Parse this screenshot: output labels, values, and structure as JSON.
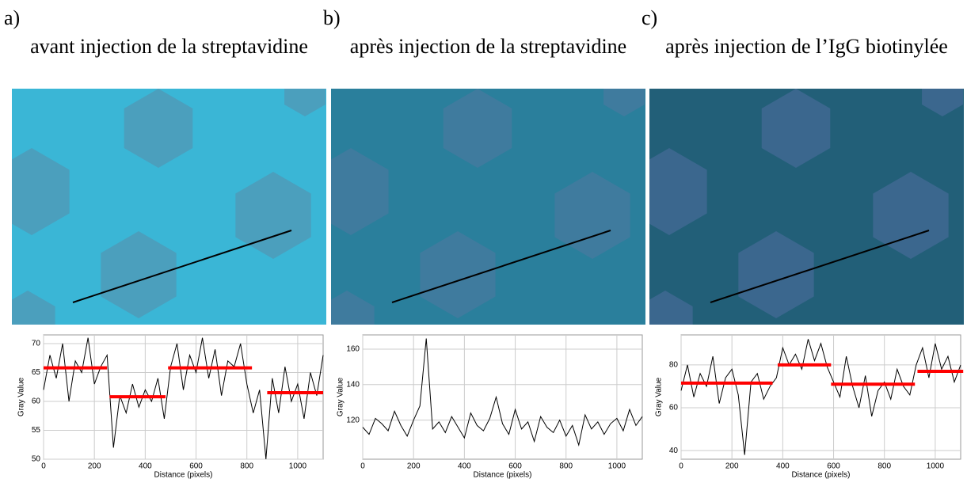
{
  "chart_data": [
    {
      "type": "line",
      "label": "a)",
      "title": "avant injection de la streptavidine",
      "xlabel": "Distance (pixels)",
      "ylabel": "Gray Value",
      "xlim": [
        0,
        1100
      ],
      "xticks": [
        0,
        200,
        400,
        600,
        800,
        1000
      ],
      "ylim": [
        50,
        71.5
      ],
      "yticks": [
        50,
        55,
        60,
        65,
        70
      ],
      "grid": true,
      "color": "#000000",
      "x": [
        0,
        25,
        50,
        75,
        100,
        125,
        150,
        175,
        200,
        225,
        250,
        275,
        300,
        325,
        350,
        375,
        400,
        425,
        450,
        475,
        500,
        525,
        550,
        575,
        600,
        625,
        650,
        675,
        700,
        725,
        750,
        775,
        800,
        825,
        850,
        875,
        900,
        925,
        950,
        975,
        1000,
        1025,
        1050,
        1075,
        1100
      ],
      "values": [
        62,
        68,
        64,
        70,
        60,
        67,
        65,
        71,
        63,
        66,
        68,
        52,
        61,
        58,
        63,
        59,
        62,
        60,
        64,
        57,
        66,
        70,
        62,
        68,
        65,
        71,
        64,
        69,
        61,
        67,
        66,
        70,
        63,
        58,
        62,
        50,
        64,
        58,
        66,
        60,
        63,
        57,
        65,
        61,
        68
      ],
      "levels_color": "#ff0000",
      "levels": [
        {
          "x": [
            0,
            250
          ],
          "value": 65.8
        },
        {
          "x": [
            260,
            480
          ],
          "value": 60.8
        },
        {
          "x": [
            490,
            820
          ],
          "value": 65.8
        },
        {
          "x": [
            880,
            1100
          ],
          "value": 61.5
        }
      ]
    },
    {
      "type": "line",
      "label": "b)",
      "title": "après injection de la streptavidine",
      "xlabel": "Distance (pixels)",
      "ylabel": "Gray Value",
      "xlim": [
        0,
        1100
      ],
      "xticks": [
        0,
        200,
        400,
        600,
        800,
        1000
      ],
      "ylim": [
        98,
        168
      ],
      "yticks": [
        120,
        140,
        160
      ],
      "grid": true,
      "color": "#000000",
      "x": [
        0,
        25,
        50,
        75,
        100,
        125,
        150,
        175,
        200,
        225,
        250,
        275,
        300,
        325,
        350,
        375,
        400,
        425,
        450,
        475,
        500,
        525,
        550,
        575,
        600,
        625,
        650,
        675,
        700,
        725,
        750,
        775,
        800,
        825,
        850,
        875,
        900,
        925,
        950,
        975,
        1000,
        1025,
        1050,
        1075,
        1100
      ],
      "values": [
        116,
        112,
        121,
        118,
        114,
        125,
        117,
        111,
        120,
        128,
        166,
        115,
        119,
        113,
        122,
        116,
        110,
        124,
        117,
        114,
        121,
        133,
        118,
        112,
        126,
        115,
        119,
        108,
        122,
        116,
        113,
        120,
        111,
        117,
        106,
        123,
        115,
        119,
        112,
        118,
        121,
        114,
        126,
        117,
        122
      ]
    },
    {
      "type": "line",
      "label": "c)",
      "title": "après injection de l’IgG biotinylée",
      "xlabel": "Distance (pixels)",
      "ylabel": "Gray Value",
      "xlim": [
        0,
        1100
      ],
      "xticks": [
        0,
        200,
        400,
        600,
        800,
        1000
      ],
      "ylim": [
        36,
        94
      ],
      "yticks": [
        40,
        60,
        80
      ],
      "grid": true,
      "color": "#000000",
      "x": [
        0,
        25,
        50,
        75,
        100,
        125,
        150,
        175,
        200,
        225,
        250,
        275,
        300,
        325,
        350,
        375,
        400,
        425,
        450,
        475,
        500,
        525,
        550,
        575,
        600,
        625,
        650,
        675,
        700,
        725,
        750,
        775,
        800,
        825,
        850,
        875,
        900,
        925,
        950,
        975,
        1000,
        1025,
        1050,
        1075,
        1100
      ],
      "values": [
        68,
        80,
        65,
        76,
        70,
        84,
        62,
        74,
        78,
        66,
        38,
        72,
        76,
        64,
        70,
        74,
        88,
        80,
        85,
        78,
        92,
        82,
        90,
        79,
        72,
        65,
        84,
        70,
        60,
        75,
        56,
        68,
        72,
        64,
        78,
        70,
        66,
        80,
        88,
        74,
        90,
        78,
        84,
        72,
        80
      ],
      "levels_color": "#ff0000",
      "levels": [
        {
          "x": [
            0,
            360
          ],
          "value": 71.5
        },
        {
          "x": [
            380,
            590
          ],
          "value": 80
        },
        {
          "x": [
            590,
            920
          ],
          "value": 71
        },
        {
          "x": [
            930,
            1110
          ],
          "value": 77
        }
      ]
    }
  ]
}
